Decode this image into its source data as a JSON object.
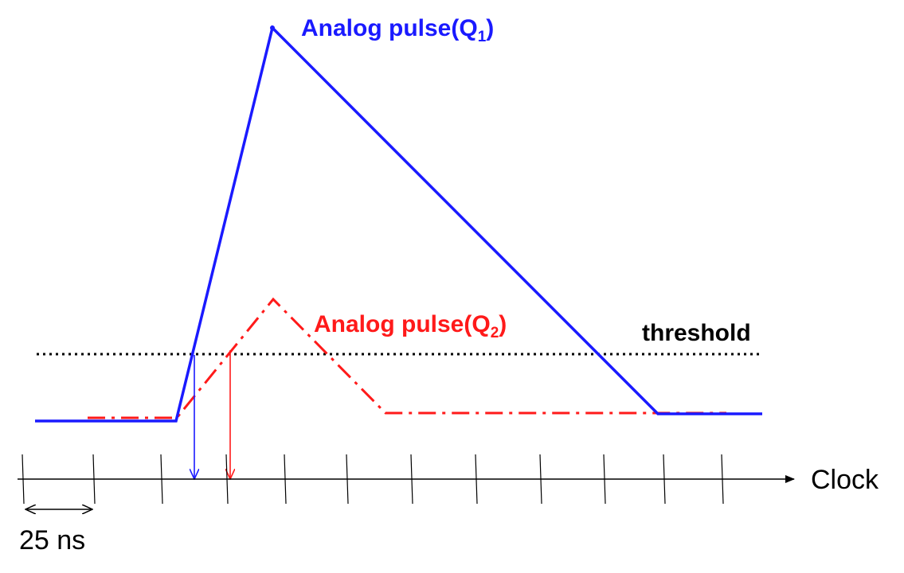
{
  "labels": {
    "pulse_q1": "Analog pulse(Q",
    "pulse_q1_sub": "1",
    "pulse_q1_close": ")",
    "pulse_q2": "Analog pulse(Q",
    "pulse_q2_sub": "2",
    "pulse_q2_close": ")",
    "threshold": "threshold",
    "clock": "Clock",
    "period": "25 ns"
  },
  "colors": {
    "q1": "#1a1aff",
    "q2": "#ff1a1a",
    "threshold": "#000000",
    "axis": "#000000"
  },
  "diagram": {
    "q1_line_style": "solid",
    "q2_line_style": "dash-dot",
    "threshold_line_style": "dotted",
    "clock_tick_count": 13
  }
}
